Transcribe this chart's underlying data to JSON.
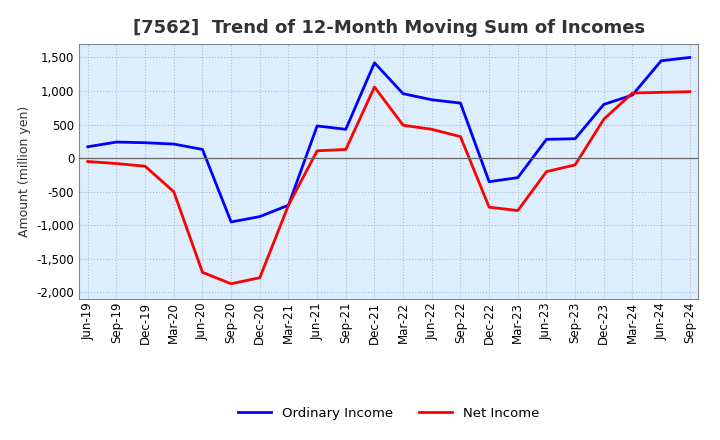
{
  "title": "[7562]  Trend of 12-Month Moving Sum of Incomes",
  "ylabel": "Amount (million yen)",
  "ylim": [
    -2100,
    1700
  ],
  "yticks": [
    -2000,
    -1500,
    -1000,
    -500,
    0,
    500,
    1000,
    1500
  ],
  "background_color": "#ffffff",
  "plot_bg_color": "#ddeeff",
  "grid_color": "#aabbcc",
  "labels": [
    "Jun-19",
    "Sep-19",
    "Dec-19",
    "Mar-20",
    "Jun-20",
    "Sep-20",
    "Dec-20",
    "Mar-21",
    "Jun-21",
    "Sep-21",
    "Dec-21",
    "Mar-22",
    "Jun-22",
    "Sep-22",
    "Dec-22",
    "Mar-23",
    "Jun-23",
    "Sep-23",
    "Dec-23",
    "Mar-24",
    "Jun-24",
    "Sep-24"
  ],
  "ordinary_income": [
    170,
    240,
    230,
    210,
    130,
    -950,
    -870,
    -700,
    480,
    430,
    1420,
    960,
    870,
    820,
    -350,
    -290,
    280,
    290,
    800,
    940,
    1450,
    1500
  ],
  "net_income": [
    -50,
    -80,
    -120,
    -500,
    -1700,
    -1870,
    -1780,
    -700,
    110,
    130,
    1060,
    490,
    430,
    320,
    -730,
    -780,
    -200,
    -100,
    580,
    970,
    980,
    990
  ],
  "ordinary_color": "#0000ff",
  "net_color": "#ff0000",
  "line_width": 2.0,
  "title_color": "#333333",
  "title_fontsize": 13,
  "ylabel_fontsize": 9,
  "tick_fontsize": 8.5,
  "legend_fontsize": 9.5
}
